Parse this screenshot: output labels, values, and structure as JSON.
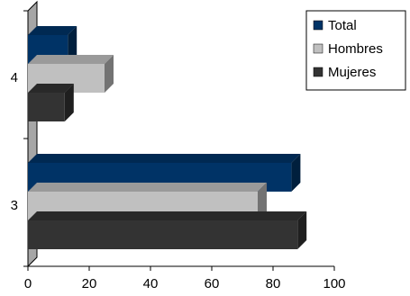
{
  "chart_data": {
    "type": "bar",
    "orientation": "horizontal",
    "style": "3d",
    "categories": [
      "3",
      "4"
    ],
    "series": [
      {
        "name": "Total",
        "values": [
          86,
          13
        ],
        "color": "#003366"
      },
      {
        "name": "Hombres",
        "values": [
          75,
          25
        ],
        "color": "#C0C0C0"
      },
      {
        "name": "Mujeres",
        "values": [
          88,
          12
        ],
        "color": "#333333"
      }
    ],
    "title": "",
    "xlabel": "",
    "ylabel": "",
    "xlim": [
      0,
      100
    ],
    "x_ticks": [
      "0",
      "20",
      "40",
      "60",
      "80",
      "100"
    ],
    "grid": false,
    "legend_position": "top-right"
  }
}
